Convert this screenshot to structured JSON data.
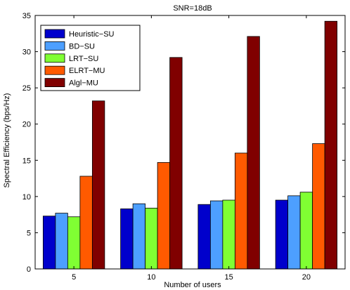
{
  "chart_data": {
    "type": "bar",
    "title": "SNR=18dB",
    "xlabel": "Number of users",
    "ylabel": "Spectral Efficiency (bps/Hz)",
    "ylim": [
      0,
      35
    ],
    "yticks": [
      0,
      5,
      10,
      15,
      20,
      25,
      30,
      35
    ],
    "categories": [
      "5",
      "10",
      "15",
      "20"
    ],
    "grid": false,
    "legend_position": "top-left",
    "series": [
      {
        "name": "Heuristic−SU",
        "color": "#0000cc",
        "values": [
          7.3,
          8.3,
          8.9,
          9.5
        ]
      },
      {
        "name": "BD−SU",
        "color": "#4d9fff",
        "values": [
          7.7,
          9.0,
          9.4,
          10.1
        ]
      },
      {
        "name": "LRT−SU",
        "color": "#80ff33",
        "values": [
          7.2,
          8.4,
          9.5,
          10.6
        ]
      },
      {
        "name": "ELRT−MU",
        "color": "#ff5a00",
        "values": [
          12.8,
          14.7,
          16.0,
          17.3
        ]
      },
      {
        "name": "Algl−MU",
        "color": "#800000",
        "values": [
          23.2,
          29.2,
          32.1,
          34.2
        ]
      }
    ]
  }
}
